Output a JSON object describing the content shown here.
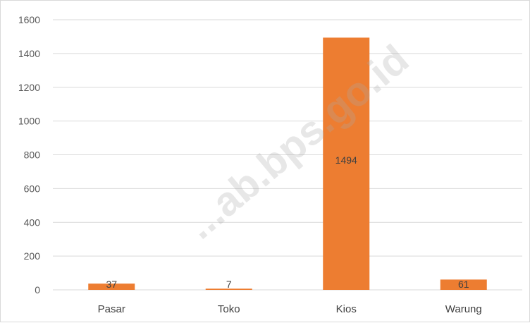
{
  "chart_data": {
    "type": "bar",
    "categories": [
      "Pasar",
      "Toko",
      "Kios",
      "Warung"
    ],
    "values": [
      37,
      7,
      1494,
      61
    ],
    "data_labels": [
      "37",
      "7",
      "1494",
      "61"
    ],
    "ylim": [
      0,
      1600
    ],
    "yticks": [
      0,
      200,
      400,
      600,
      800,
      1000,
      1200,
      1400,
      1600
    ],
    "grid": true,
    "legend": "none",
    "bar_color": "#ED7D31",
    "grid_color": "#D9D9D9"
  },
  "watermark": "...ab.bps.go.id"
}
